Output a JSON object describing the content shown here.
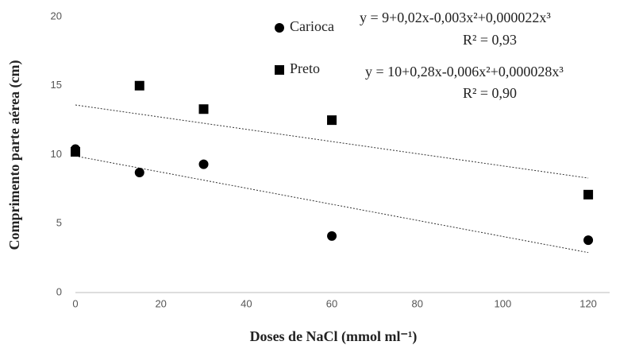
{
  "chart_data": {
    "type": "scatter",
    "x_label": "Doses de NaCl (mmol ml⁻¹)",
    "y_label": "Comprimento parte aérea (cm)",
    "x": [
      0,
      15,
      30,
      60,
      120
    ],
    "series": [
      {
        "name": "Carioca",
        "color": "#000000",
        "marker": "circle",
        "values": [
          10.4,
          8.7,
          9.3,
          4.1,
          3.8
        ]
      },
      {
        "name": "Preto",
        "color": "#000000",
        "marker": "square",
        "values": [
          10.2,
          15.0,
          13.3,
          12.5,
          7.1
        ]
      }
    ],
    "trendlines": [
      {
        "x": [
          0,
          120
        ],
        "values": [
          9.9,
          2.9
        ]
      },
      {
        "x": [
          0,
          120
        ],
        "values": [
          13.6,
          8.3
        ]
      }
    ],
    "annotations": [
      "y =  9+0,02x-0,003x²+0,000022x³",
      "R² = 0,93",
      "y = 10+0,28x-0,006x²+0,000028x³",
      "R² = 0,90"
    ],
    "xlim": [
      0,
      125
    ],
    "xticks": [
      0,
      20,
      40,
      60,
      80,
      100,
      120
    ],
    "ylim": [
      0,
      20
    ],
    "yticks": [
      0,
      5,
      10,
      15,
      20
    ]
  }
}
